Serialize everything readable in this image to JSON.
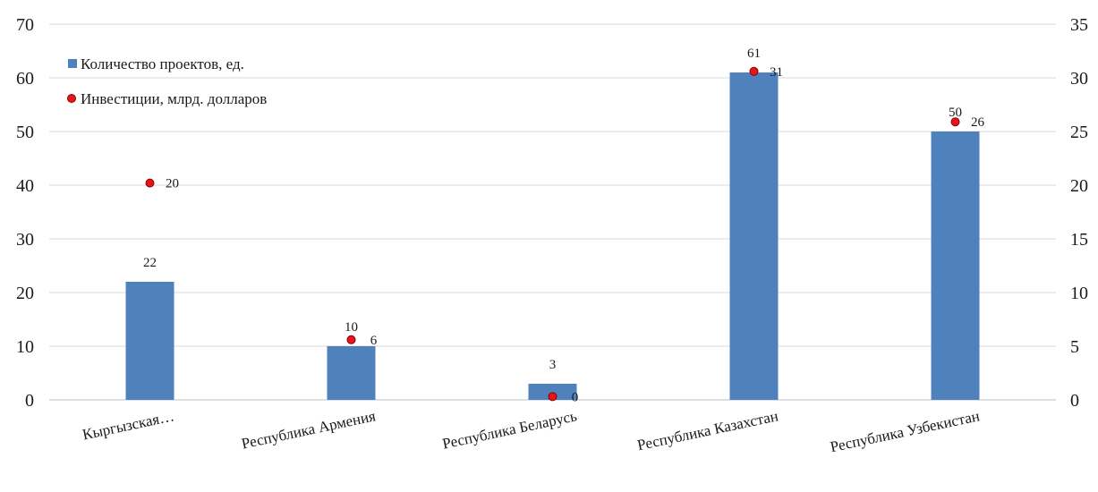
{
  "chart_data": {
    "type": "bar+scatter",
    "categories": [
      "Кыргызская…",
      "Республика Армения",
      "Республика Беларусь",
      "Республика Казахстан",
      "Республика Узбекистан"
    ],
    "series": [
      {
        "name": "Количество проектов, ед.",
        "kind": "bar",
        "axis": "left",
        "values": [
          22,
          10,
          3,
          61,
          50
        ],
        "labels": [
          "22",
          "10",
          "3",
          "61",
          "50"
        ],
        "color": "#4f81bd"
      },
      {
        "name": "Инвестиции, млрд. долларов",
        "kind": "scatter",
        "axis": "right",
        "values": [
          20.2,
          5.6,
          0.3,
          30.6,
          25.9
        ],
        "labels": [
          "20",
          "6",
          "0",
          "31",
          "26"
        ],
        "color": "#e8141c"
      }
    ],
    "y_left": {
      "ylim": [
        0,
        70
      ],
      "ticks": [
        "0",
        "10",
        "20",
        "30",
        "40",
        "50",
        "60",
        "70"
      ]
    },
    "y_right": {
      "ylim": [
        0,
        35
      ],
      "ticks": [
        "0",
        "5",
        "10",
        "15",
        "20",
        "25",
        "30",
        "35"
      ]
    },
    "grid": true,
    "legend_position": "top-left"
  }
}
